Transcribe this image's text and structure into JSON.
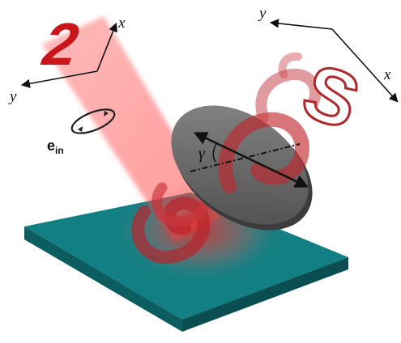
{
  "left_frame": {
    "x_label": "x",
    "y_label": "y"
  },
  "right_frame": {
    "x_label": "x",
    "y_label": "y"
  },
  "left_hologram_glyph": "2",
  "right_hologram_glyph": "S",
  "input_polarization": {
    "symbol": "e",
    "subscript": "in"
  },
  "rotation_angle_label": "γ",
  "colors": {
    "beam": "#ff2a2a",
    "hologram_solid": "#c8161c",
    "hologram_outline": "#b1262b",
    "metasurface_top": "#117f83",
    "metasurface_side": "#0c5d60",
    "disk": "#6e6e6e",
    "spiral": "#c0272d"
  },
  "icons": [
    "hologram-2",
    "hologram-s",
    "polarization-ellipse",
    "quarter-wave-disk",
    "metasurface-slab",
    "helical-wavefront"
  ]
}
